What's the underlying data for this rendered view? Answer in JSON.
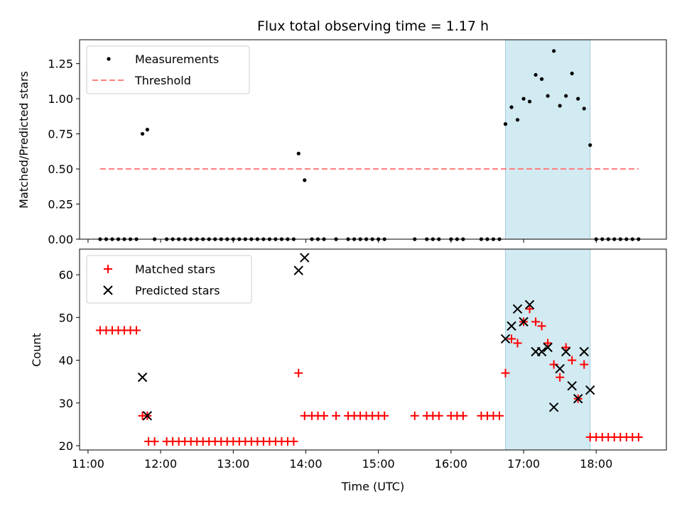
{
  "chart_data": [
    {
      "type": "scatter",
      "title": "Flux total observing time = 1.17 h",
      "xlabel": "",
      "ylabel": "Matched/Predicted stars",
      "xlim": [
        "10:53",
        "18:58"
      ],
      "ylim": [
        0,
        1.42
      ],
      "yticks": [
        0.0,
        0.25,
        0.5,
        0.75,
        1.0,
        1.25
      ],
      "ytick_labels": [
        "0.00",
        "0.25",
        "0.50",
        "0.75",
        "1.00",
        "1.25"
      ],
      "highlight_span": [
        "16:45",
        "17:55"
      ],
      "legend_position": "top-left",
      "series": [
        {
          "name": "Measurements",
          "marker": "dot",
          "color": "#000000",
          "points": [
            [
              "11:10",
              0
            ],
            [
              "11:15",
              0
            ],
            [
              "11:20",
              0
            ],
            [
              "11:25",
              0
            ],
            [
              "11:30",
              0
            ],
            [
              "11:35",
              0
            ],
            [
              "11:40",
              0
            ],
            [
              "11:45",
              0.75
            ],
            [
              "11:49",
              0.78
            ],
            [
              "11:55",
              0
            ],
            [
              "12:05",
              0
            ],
            [
              "12:10",
              0
            ],
            [
              "12:15",
              0
            ],
            [
              "12:20",
              0
            ],
            [
              "12:25",
              0
            ],
            [
              "12:30",
              0
            ],
            [
              "12:35",
              0
            ],
            [
              "12:40",
              0
            ],
            [
              "12:45",
              0
            ],
            [
              "12:50",
              0
            ],
            [
              "12:55",
              0
            ],
            [
              "13:00",
              0
            ],
            [
              "13:05",
              0
            ],
            [
              "13:10",
              0
            ],
            [
              "13:15",
              0
            ],
            [
              "13:20",
              0
            ],
            [
              "13:25",
              0
            ],
            [
              "13:30",
              0
            ],
            [
              "13:35",
              0
            ],
            [
              "13:40",
              0
            ],
            [
              "13:45",
              0
            ],
            [
              "13:50",
              0
            ],
            [
              "13:54",
              0.61
            ],
            [
              "13:59",
              0.42
            ],
            [
              "14:05",
              0
            ],
            [
              "14:10",
              0
            ],
            [
              "14:15",
              0
            ],
            [
              "14:25",
              0
            ],
            [
              "14:35",
              0
            ],
            [
              "14:40",
              0
            ],
            [
              "14:45",
              0
            ],
            [
              "14:50",
              0
            ],
            [
              "14:55",
              0
            ],
            [
              "15:00",
              0
            ],
            [
              "15:05",
              0
            ],
            [
              "15:30",
              0
            ],
            [
              "15:40",
              0
            ],
            [
              "15:45",
              0
            ],
            [
              "15:50",
              0
            ],
            [
              "16:00",
              0
            ],
            [
              "16:05",
              0
            ],
            [
              "16:10",
              0
            ],
            [
              "16:25",
              0
            ],
            [
              "16:30",
              0
            ],
            [
              "16:35",
              0
            ],
            [
              "16:40",
              0
            ],
            [
              "16:45",
              0.82
            ],
            [
              "16:50",
              0.94
            ],
            [
              "16:55",
              0.85
            ],
            [
              "17:00",
              1.0
            ],
            [
              "17:05",
              0.98
            ],
            [
              "17:10",
              1.17
            ],
            [
              "17:15",
              1.14
            ],
            [
              "17:20",
              1.02
            ],
            [
              "17:25",
              1.34
            ],
            [
              "17:30",
              0.95
            ],
            [
              "17:35",
              1.02
            ],
            [
              "17:40",
              1.18
            ],
            [
              "17:45",
              1.0
            ],
            [
              "17:50",
              0.93
            ],
            [
              "17:55",
              0.67
            ],
            [
              "18:00",
              0
            ],
            [
              "18:05",
              0
            ],
            [
              "18:10",
              0
            ],
            [
              "18:15",
              0
            ],
            [
              "18:20",
              0
            ],
            [
              "18:25",
              0
            ],
            [
              "18:30",
              0
            ],
            [
              "18:35",
              0
            ]
          ]
        },
        {
          "name": "Threshold",
          "marker": "dashed-line",
          "color": "#ff7f7f",
          "points": [
            [
              "11:10",
              0.5
            ],
            [
              "18:35",
              0.5
            ]
          ]
        }
      ]
    },
    {
      "type": "scatter",
      "title": "",
      "xlabel": "Time (UTC)",
      "ylabel": "Count",
      "xlim": [
        "10:53",
        "18:58"
      ],
      "ylim": [
        19,
        66
      ],
      "xticks": [
        "11:00",
        "12:00",
        "13:00",
        "14:00",
        "15:00",
        "16:00",
        "17:00",
        "18:00"
      ],
      "yticks": [
        20,
        30,
        40,
        50,
        60
      ],
      "ytick_labels": [
        "20",
        "30",
        "40",
        "50",
        "60"
      ],
      "highlight_span": [
        "16:45",
        "17:55"
      ],
      "legend_position": "top-left",
      "series": [
        {
          "name": "Matched stars",
          "marker": "plus",
          "color": "#ff0000",
          "points": [
            [
              "11:10",
              47
            ],
            [
              "11:15",
              47
            ],
            [
              "11:20",
              47
            ],
            [
              "11:25",
              47
            ],
            [
              "11:30",
              47
            ],
            [
              "11:35",
              47
            ],
            [
              "11:40",
              47
            ],
            [
              "11:45",
              27
            ],
            [
              "11:49",
              27
            ],
            [
              "11:50",
              21
            ],
            [
              "11:55",
              21
            ],
            [
              "12:05",
              21
            ],
            [
              "12:10",
              21
            ],
            [
              "12:15",
              21
            ],
            [
              "12:20",
              21
            ],
            [
              "12:25",
              21
            ],
            [
              "12:30",
              21
            ],
            [
              "12:35",
              21
            ],
            [
              "12:40",
              21
            ],
            [
              "12:45",
              21
            ],
            [
              "12:50",
              21
            ],
            [
              "12:55",
              21
            ],
            [
              "13:00",
              21
            ],
            [
              "13:05",
              21
            ],
            [
              "13:10",
              21
            ],
            [
              "13:15",
              21
            ],
            [
              "13:20",
              21
            ],
            [
              "13:25",
              21
            ],
            [
              "13:30",
              21
            ],
            [
              "13:35",
              21
            ],
            [
              "13:40",
              21
            ],
            [
              "13:45",
              21
            ],
            [
              "13:50",
              21
            ],
            [
              "13:54",
              37
            ],
            [
              "13:59",
              27
            ],
            [
              "14:05",
              27
            ],
            [
              "14:10",
              27
            ],
            [
              "14:15",
              27
            ],
            [
              "14:25",
              27
            ],
            [
              "14:35",
              27
            ],
            [
              "14:40",
              27
            ],
            [
              "14:45",
              27
            ],
            [
              "14:50",
              27
            ],
            [
              "14:55",
              27
            ],
            [
              "15:00",
              27
            ],
            [
              "15:05",
              27
            ],
            [
              "15:30",
              27
            ],
            [
              "15:40",
              27
            ],
            [
              "15:45",
              27
            ],
            [
              "15:50",
              27
            ],
            [
              "16:00",
              27
            ],
            [
              "16:05",
              27
            ],
            [
              "16:10",
              27
            ],
            [
              "16:25",
              27
            ],
            [
              "16:30",
              27
            ],
            [
              "16:35",
              27
            ],
            [
              "16:40",
              27
            ],
            [
              "16:45",
              37
            ],
            [
              "16:50",
              45
            ],
            [
              "16:55",
              44
            ],
            [
              "17:00",
              49
            ],
            [
              "17:05",
              52
            ],
            [
              "17:10",
              49
            ],
            [
              "17:15",
              48
            ],
            [
              "17:20",
              44
            ],
            [
              "17:25",
              39
            ],
            [
              "17:30",
              36
            ],
            [
              "17:35",
              43
            ],
            [
              "17:40",
              40
            ],
            [
              "17:45",
              31
            ],
            [
              "17:50",
              39
            ],
            [
              "17:55",
              22
            ],
            [
              "18:00",
              22
            ],
            [
              "18:05",
              22
            ],
            [
              "18:10",
              22
            ],
            [
              "18:15",
              22
            ],
            [
              "18:20",
              22
            ],
            [
              "18:25",
              22
            ],
            [
              "18:30",
              22
            ],
            [
              "18:35",
              22
            ]
          ]
        },
        {
          "name": "Predicted stars",
          "marker": "x",
          "color": "#000000",
          "points": [
            [
              "11:45",
              36
            ],
            [
              "11:49",
              27
            ],
            [
              "13:54",
              61
            ],
            [
              "13:59",
              64
            ],
            [
              "16:45",
              45
            ],
            [
              "16:50",
              48
            ],
            [
              "16:55",
              52
            ],
            [
              "17:00",
              49
            ],
            [
              "17:05",
              53
            ],
            [
              "17:10",
              42
            ],
            [
              "17:15",
              42
            ],
            [
              "17:20",
              43
            ],
            [
              "17:25",
              29
            ],
            [
              "17:30",
              38
            ],
            [
              "17:35",
              42
            ],
            [
              "17:40",
              34
            ],
            [
              "17:45",
              31
            ],
            [
              "17:50",
              42
            ],
            [
              "17:55",
              33
            ]
          ]
        }
      ]
    }
  ],
  "colors": {
    "span_fill": "#add8e6",
    "span_edge": "#a3cfe0"
  }
}
